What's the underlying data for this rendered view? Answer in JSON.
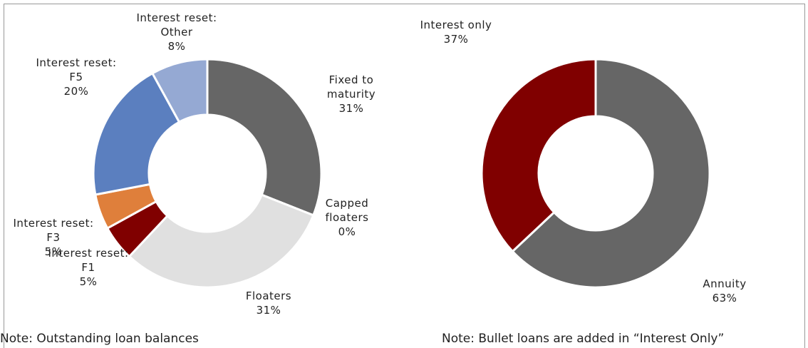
{
  "chart_data": [
    {
      "type": "donut",
      "categories": [
        "Fixed to maturity",
        "Capped floaters",
        "Floaters",
        "Interest reset: F1",
        "Interest reset: F3",
        "Interest reset: F5",
        "Interest reset: Other"
      ],
      "values": [
        31,
        0,
        31,
        5,
        5,
        20,
        8
      ],
      "value_labels": [
        "31%",
        "0%",
        "31%",
        "5%",
        "5%",
        "20%",
        "8%"
      ],
      "colors": [
        "#666666",
        "#a5a5a5",
        "#e0e0e0",
        "#800000",
        "#df7f3b",
        "#5b7fbf",
        "#95a9d3"
      ],
      "note": "Note: Outstanding loan balances"
    },
    {
      "type": "donut",
      "categories": [
        "Annuity",
        "Interest only"
      ],
      "values": [
        63,
        37
      ],
      "value_labels": [
        "63%",
        "37%"
      ],
      "colors": [
        "#666666",
        "#800000"
      ],
      "note": "Note: Bullet loans are added in “Interest Only”"
    }
  ]
}
